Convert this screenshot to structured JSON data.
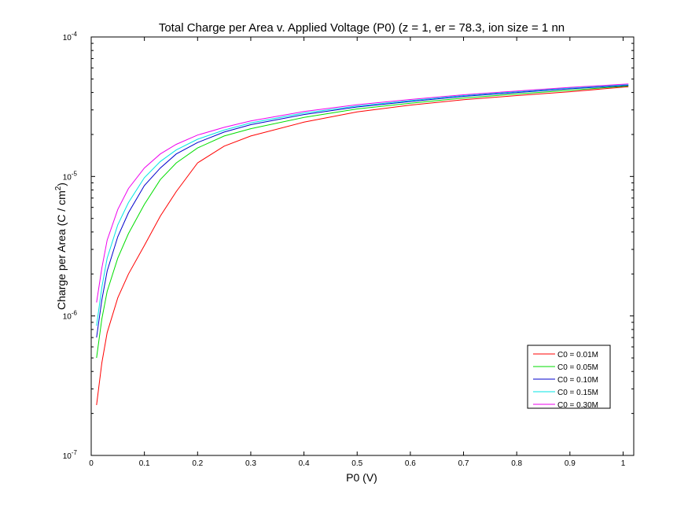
{
  "chart_data": {
    "type": "line",
    "title": "Total Charge per Area v. Applied Voltage (P0) (z = 1, er = 78.3, ion size = 1 nn",
    "xlabel": "P0 (V)",
    "ylabel": "Charge per Area (C / cm",
    "ylabel_superscript": "2",
    "ylabel_close": ")",
    "x_scale": "linear",
    "y_scale": "log",
    "xlim": [
      0,
      1.02
    ],
    "ylim": [
      1e-07,
      0.0001
    ],
    "grid": false,
    "legend_position": "lower-right",
    "x_ticks": [
      0,
      0.1,
      0.2,
      0.3,
      0.4,
      0.5,
      0.6,
      0.7,
      0.8,
      0.9,
      1
    ],
    "x_tick_labels": [
      "0",
      "0.1",
      "0.2",
      "0.3",
      "0.4",
      "0.5",
      "0.6",
      "0.7",
      "0.8",
      "0.9",
      "1"
    ],
    "y_ticks": [
      {
        "value": 1e-07,
        "base": "10",
        "exp": "-7"
      },
      {
        "value": 1e-06,
        "base": "10",
        "exp": "-6"
      },
      {
        "value": 1e-05,
        "base": "10",
        "exp": "-5"
      },
      {
        "value": 0.0001,
        "base": "10",
        "exp": "-4"
      }
    ],
    "x": [
      0.01,
      0.02,
      0.03,
      0.05,
      0.07,
      0.1,
      0.13,
      0.16,
      0.2,
      0.25,
      0.3,
      0.4,
      0.5,
      0.6,
      0.7,
      0.8,
      0.9,
      1.01
    ],
    "series": [
      {
        "name": "C0 = 0.01M",
        "color": "#ff0000",
        "values": [
          2.3e-07,
          4.6e-07,
          7.6e-07,
          1.35e-06,
          2e-06,
          3.2e-06,
          5.2e-06,
          7.8e-06,
          1.25e-05,
          1.65e-05,
          1.95e-05,
          2.45e-05,
          2.9e-05,
          3.25e-05,
          3.55e-05,
          3.8e-05,
          4.05e-05,
          4.4e-05
        ]
      },
      {
        "name": "C0 = 0.05M",
        "color": "#00dd00",
        "values": [
          5e-07,
          9.5e-07,
          1.5e-06,
          2.6e-06,
          3.9e-06,
          6.3e-06,
          9.5e-06,
          1.25e-05,
          1.6e-05,
          1.95e-05,
          2.2e-05,
          2.65e-05,
          3.05e-05,
          3.35e-05,
          3.65e-05,
          3.9e-05,
          4.15e-05,
          4.45e-05
        ]
      },
      {
        "name": "C0 = 0.10M",
        "color": "#0000cc",
        "values": [
          7e-07,
          1.3e-06,
          2.1e-06,
          3.7e-06,
          5.5e-06,
          8.6e-06,
          1.15e-05,
          1.45e-05,
          1.75e-05,
          2.08e-05,
          2.35e-05,
          2.78e-05,
          3.15e-05,
          3.45e-05,
          3.75e-05,
          4e-05,
          4.25e-05,
          4.5e-05
        ]
      },
      {
        "name": "C0 = 0.15M",
        "color": "#00e5e5",
        "values": [
          8.5e-07,
          1.6e-06,
          2.6e-06,
          4.5e-06,
          6.5e-06,
          9.8e-06,
          1.28e-05,
          1.55e-05,
          1.85e-05,
          2.15e-05,
          2.42e-05,
          2.85e-05,
          3.2e-05,
          3.5e-05,
          3.8e-05,
          4.05e-05,
          4.3e-05,
          4.55e-05
        ]
      },
      {
        "name": "C0 = 0.30M",
        "color": "#ee00ee",
        "values": [
          1.25e-06,
          2.2e-06,
          3.5e-06,
          5.8e-06,
          8.2e-06,
          1.15e-05,
          1.45e-05,
          1.7e-05,
          1.98e-05,
          2.25e-05,
          2.5e-05,
          2.92e-05,
          3.27e-05,
          3.56e-05,
          3.85e-05,
          4.1e-05,
          4.35e-05,
          4.6e-05
        ]
      }
    ]
  }
}
